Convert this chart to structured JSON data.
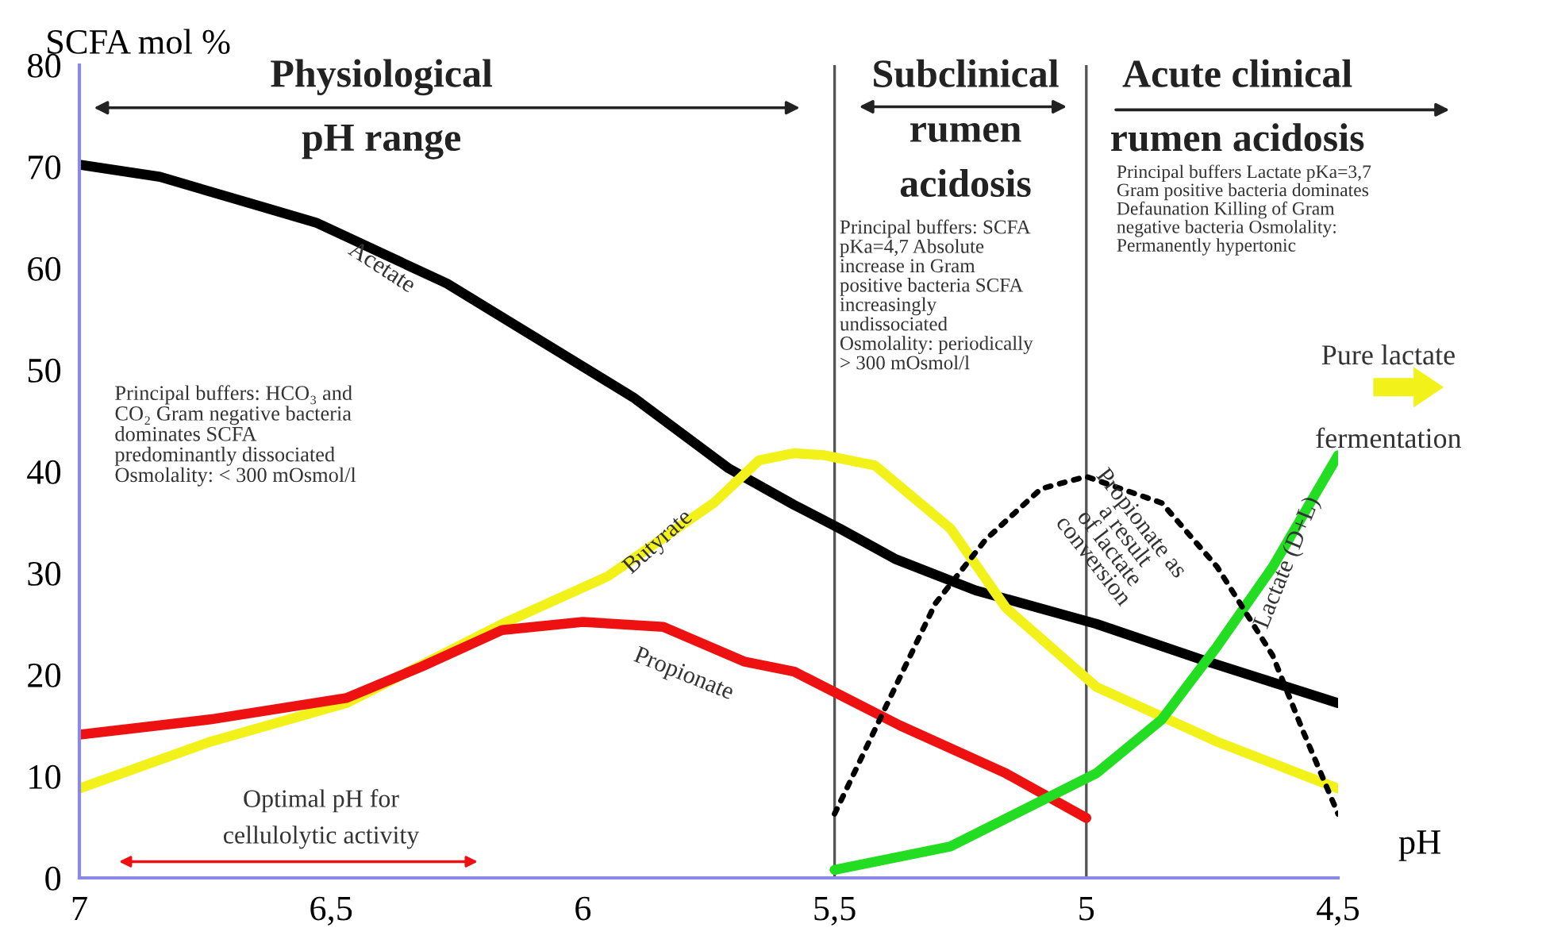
{
  "chart_data": {
    "type": "line",
    "ylabel": "SCFA mol %",
    "xlabel": "pH",
    "xlim": [
      7,
      4.5
    ],
    "ylim": [
      0,
      80
    ],
    "xticks": [
      7,
      {
        "value": 6.5,
        "label": "6,5"
      },
      6,
      {
        "value": 5.5,
        "label": "5,5"
      },
      5,
      {
        "value": 4.5,
        "label": "4,5"
      }
    ],
    "yticks": [
      0,
      10,
      20,
      30,
      40,
      50,
      60,
      70,
      80
    ],
    "grid": false,
    "marker": "none",
    "series": [
      {
        "name": "Acetate",
        "color": "#000000",
        "line_style": "solid",
        "x": [
          7,
          6.84,
          6.53,
          6.27,
          5.9,
          5.71,
          5.58,
          5.49,
          5.38,
          5.22,
          4.98,
          4.76,
          4.5
        ],
        "values": [
          70.2,
          69,
          64.5,
          58.5,
          47.3,
          40.3,
          36.7,
          34.4,
          31.4,
          28.3,
          25,
          21.3,
          17.2
        ]
      },
      {
        "name": "Butyrate",
        "color": "#f2f21a",
        "line_style": "solid",
        "x": [
          7,
          6.74,
          6.47,
          6.16,
          5.95,
          5.74,
          5.65,
          5.58,
          5.52,
          5.42,
          5.27,
          5.16,
          4.98,
          4.74,
          4.5
        ],
        "values": [
          8.8,
          13.4,
          17.2,
          25,
          29.7,
          36.9,
          41.1,
          41.8,
          41.6,
          40.6,
          34.4,
          26.6,
          18.8,
          13.4,
          8.8
        ]
      },
      {
        "name": "Propionate",
        "color": "#ee1111",
        "line_style": "solid",
        "x": [
          7,
          6.74,
          6.47,
          6.32,
          6.16,
          6.0,
          5.84,
          5.68,
          5.58,
          5.37,
          5.16,
          5.0
        ],
        "values": [
          14.1,
          15.6,
          17.7,
          20.8,
          24.4,
          25.2,
          24.7,
          21.3,
          20.3,
          15,
          10.3,
          5.9
        ]
      },
      {
        "name": "Lactate (D+L)",
        "color": "#22dd22",
        "line_style": "solid",
        "x": [
          5.5,
          5.27,
          4.98,
          4.85,
          4.74,
          4.63,
          4.5
        ],
        "values": [
          0.8,
          3.1,
          10.3,
          15.6,
          22.8,
          30.6,
          41.6
        ]
      },
      {
        "name": "Propionate as\na result\nof lactate\nconversion",
        "color": "#000000",
        "line_style": "dotted",
        "x": [
          5.5,
          5.39,
          5.3,
          5.2,
          5.09,
          5.0,
          4.85,
          4.74,
          4.63,
          4.57,
          4.5
        ],
        "values": [
          6.3,
          17.7,
          27,
          33.3,
          38.3,
          39.5,
          36.9,
          30.6,
          21.9,
          14.5,
          6.3
        ]
      }
    ],
    "ref_lines": [
      {
        "axis": "x",
        "value": 5.5,
        "color": "#555555"
      },
      {
        "axis": "x",
        "value": 5,
        "color": "#555555"
      }
    ],
    "annotations": [
      "Physiological\npH range",
      "Subclinical\nrumen\nacidosis",
      "Acute clinical\nrumen acidosis",
      "Principal buffers: HCO₃ and\nCO₂ Gram negative bacteria\ndominates SCFA\npredominantly dissociated\nOsmolality: < 300 mOsmol/l",
      "Principal buffers: SCFA\npKa=4,7 Absolute\nincrease in Gram\npositive bacteria SCFA\nincreasingly\nundissociated\nOsmolality: periodically\n> 300 mOsmol/l",
      "Principal buffers Lactate pKa=3,7\nGram positive bacteria dominates\nDefaunation Killing of Gram\nnegative bacteria Osmolality:\nPermanently hypertonic",
      "Pure lactate",
      "fermentation",
      "Optimal pH for\ncellulolytic activity"
    ]
  }
}
